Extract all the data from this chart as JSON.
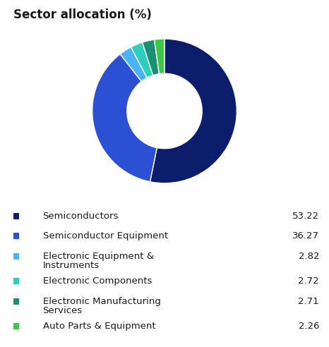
{
  "title": "Sector allocation (%)",
  "sectors": [
    {
      "label": "Semiconductors",
      "value": 53.22,
      "color": "#0c1d6b",
      "label2": null
    },
    {
      "label": "Semiconductor Equipment",
      "value": 36.27,
      "color": "#2b50d4",
      "label2": null
    },
    {
      "label": "Electronic Equipment &",
      "value": 2.82,
      "color": "#4ab4f5",
      "label2": "Instruments"
    },
    {
      "label": "Electronic Components",
      "value": 2.72,
      "color": "#2ecfbd",
      "label2": null
    },
    {
      "label": "Electronic Manufacturing",
      "value": 2.71,
      "color": "#1a8f72",
      "label2": "Services"
    },
    {
      "label": "Auto Parts & Equipment",
      "value": 2.26,
      "color": "#3ec84a",
      "label2": null
    }
  ],
  "startangle": 90,
  "donut_width": 0.48,
  "bg_color": "#ffffff",
  "title_fontsize": 12,
  "legend_fontsize": 9.5,
  "value_fontsize": 9.5
}
